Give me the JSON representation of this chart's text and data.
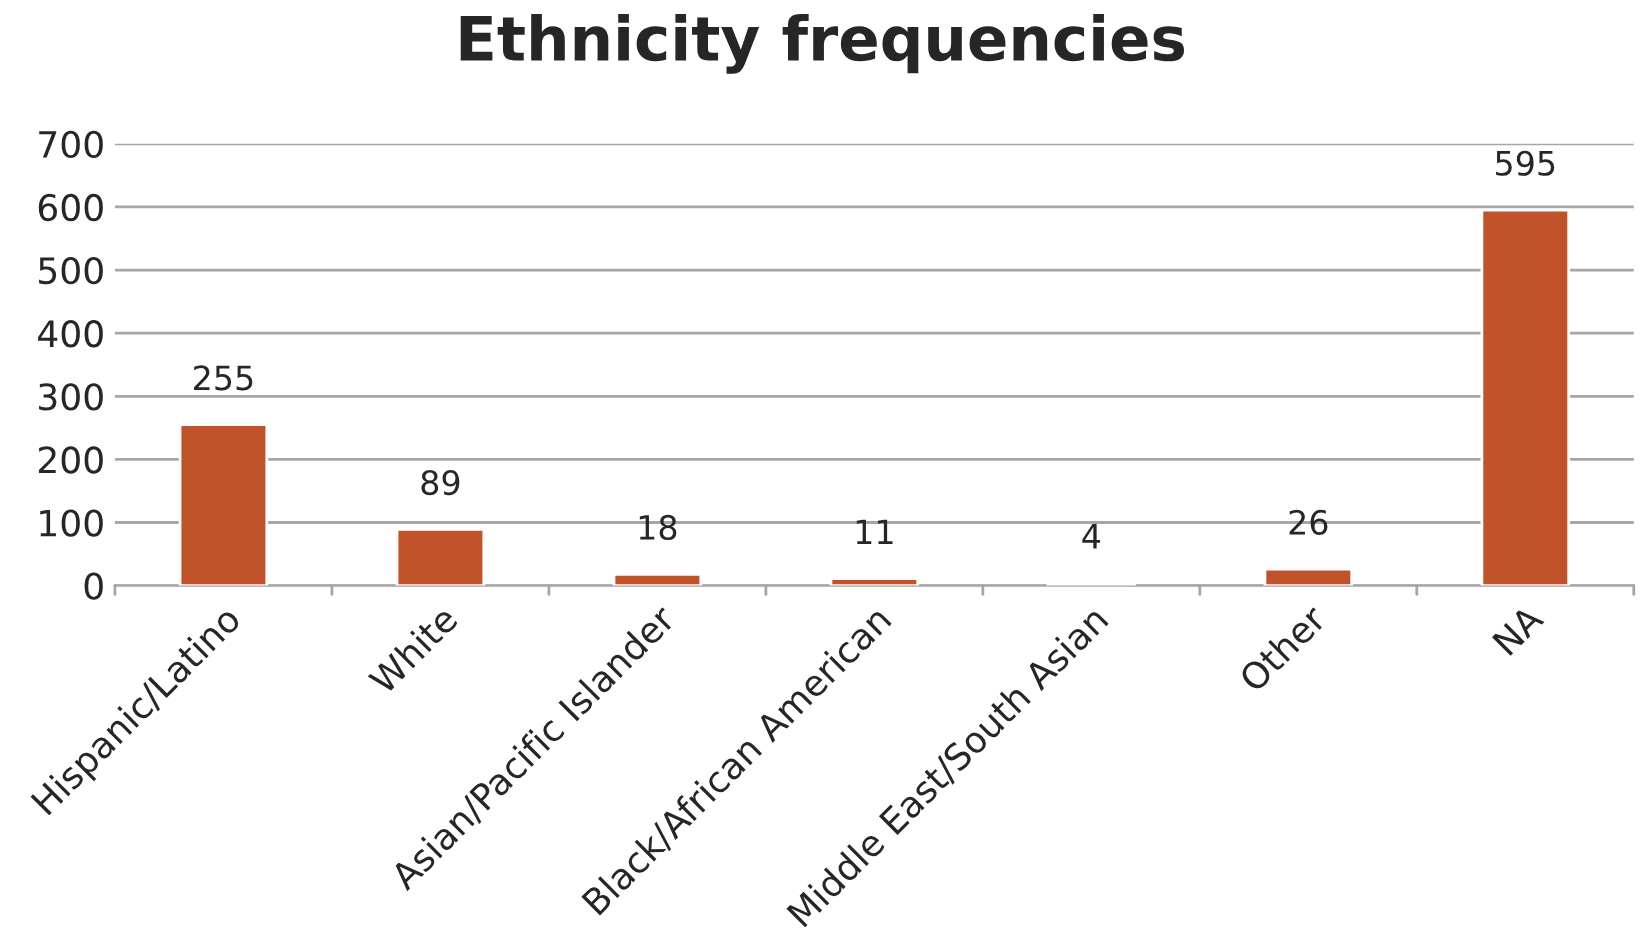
{
  "chart_data": {
    "type": "bar",
    "title": "Ethnicity frequencies",
    "categories": [
      "Hispanic/Latino",
      "White",
      "Asian/Pacific Islander",
      "Black/African American",
      "Middle East/South Asian",
      "Other",
      "NA"
    ],
    "values": [
      255,
      89,
      18,
      11,
      4,
      26,
      595
    ],
    "color": "#c0532a",
    "ylim": [
      0,
      700
    ],
    "yticks": [
      0,
      100,
      200,
      300,
      400,
      500,
      600,
      700
    ],
    "grid": "y",
    "data_labels": true
  }
}
